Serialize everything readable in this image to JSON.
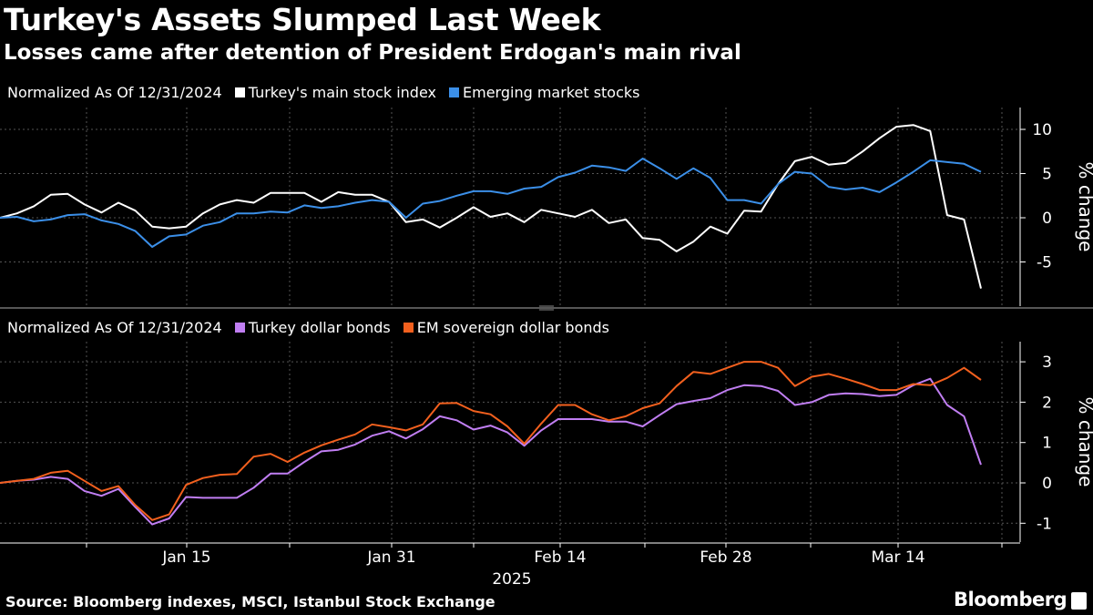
{
  "title": "Turkey's Assets Slumped Last Week",
  "subtitle": "Losses came after detention of President Erdogan's main rival",
  "source": "Source: Bloomberg indexes, MSCI, Istanbul Stock Exchange",
  "brand": "Bloomberg",
  "colors": {
    "white": "#ffffff",
    "blue": "#3b8fe8",
    "purple": "#c07ef2",
    "orange": "#f2601e",
    "grid": "#555555"
  },
  "x_axis": {
    "ticks": [
      "Jan 15",
      "Jan 31",
      "Feb 14",
      "Feb 28",
      "Mar 14"
    ],
    "year_label": "2025"
  },
  "chart_data": [
    {
      "type": "line",
      "legend_note": "Normalized As Of 12/31/2024",
      "ylabel": "% change",
      "ylim": [
        -10,
        12
      ],
      "yticks": [
        "10",
        "5",
        "0",
        "-5"
      ],
      "ytick_values": [
        10,
        5,
        0,
        -5
      ],
      "x": [
        "Dec 31",
        "Jan 2",
        "Jan 3",
        "Jan 6",
        "Jan 7",
        "Jan 8",
        "Jan 9",
        "Jan 10",
        "Jan 13",
        "Jan 14",
        "Jan 15",
        "Jan 16",
        "Jan 17",
        "Jan 20",
        "Jan 21",
        "Jan 22",
        "Jan 23",
        "Jan 24",
        "Jan 27",
        "Jan 28",
        "Jan 29",
        "Jan 30",
        "Jan 31",
        "Feb 3",
        "Feb 4",
        "Feb 5",
        "Feb 6",
        "Feb 7",
        "Feb 10",
        "Feb 11",
        "Feb 12",
        "Feb 13",
        "Feb 14",
        "Feb 17",
        "Feb 18",
        "Feb 19",
        "Feb 20",
        "Feb 21",
        "Feb 24",
        "Feb 25",
        "Feb 26",
        "Feb 27",
        "Feb 28",
        "Mar 3",
        "Mar 4",
        "Mar 5",
        "Mar 6",
        "Mar 7",
        "Mar 10",
        "Mar 11",
        "Mar 12",
        "Mar 13",
        "Mar 14",
        "Mar 17",
        "Mar 18",
        "Mar 19",
        "Mar 20",
        "Mar 21",
        "Mar 24"
      ],
      "series": [
        {
          "name": "Turkey's main stock index",
          "color": "#ffffff",
          "values": [
            0,
            0.5,
            1.3,
            2.6,
            2.7,
            1.5,
            0.6,
            1.7,
            0.8,
            -1.0,
            -1.2,
            -1.0,
            0.5,
            1.5,
            2.0,
            1.7,
            2.8,
            2.8,
            2.8,
            1.8,
            2.9,
            2.6,
            2.6,
            1.8,
            -0.5,
            -0.2,
            -1.1,
            0,
            1.2,
            0.1,
            0.5,
            -0.5,
            0.9,
            0.5,
            0.1,
            0.9,
            -0.6,
            -0.2,
            -2.3,
            -2.5,
            -3.8,
            -2.7,
            -1.0,
            -1.8,
            0.8,
            0.7,
            3.8,
            6.4,
            6.9,
            6.0,
            6.2,
            7.5,
            9.0,
            10.3,
            10.5,
            9.8,
            0.3,
            -0.2,
            -8.0
          ]
        },
        {
          "name": "Emerging market stocks",
          "color": "#3b8fe8",
          "values": [
            0,
            0.1,
            -0.4,
            -0.2,
            0.3,
            0.4,
            -0.3,
            -0.7,
            -1.5,
            -3.3,
            -2.1,
            -1.9,
            -0.9,
            -0.5,
            0.5,
            0.5,
            0.7,
            0.6,
            1.4,
            1.1,
            1.3,
            1.7,
            2.0,
            1.8,
            0,
            1.6,
            1.9,
            2.5,
            3.0,
            3.0,
            2.7,
            3.3,
            3.5,
            4.6,
            5.1,
            5.9,
            5.7,
            5.3,
            6.7,
            5.6,
            4.4,
            5.6,
            4.5,
            2.0,
            2.0,
            1.6,
            3.8,
            5.2,
            5.0,
            3.5,
            3.2,
            3.4,
            2.9,
            4.0,
            5.2,
            6.5,
            6.3,
            6.1,
            5.2
          ]
        }
      ]
    },
    {
      "type": "line",
      "legend_note": "Normalized As Of 12/31/2024",
      "ylabel": "% change",
      "ylim": [
        -1.4,
        3.6
      ],
      "yticks": [
        "3",
        "2",
        "1",
        "0",
        "-1"
      ],
      "ytick_values": [
        3,
        2,
        1,
        0,
        -1
      ],
      "x": [
        "Dec 31",
        "Jan 2",
        "Jan 3",
        "Jan 6",
        "Jan 7",
        "Jan 8",
        "Jan 9",
        "Jan 10",
        "Jan 13",
        "Jan 14",
        "Jan 15",
        "Jan 16",
        "Jan 17",
        "Jan 20",
        "Jan 21",
        "Jan 22",
        "Jan 23",
        "Jan 24",
        "Jan 27",
        "Jan 28",
        "Jan 29",
        "Jan 30",
        "Jan 31",
        "Feb 3",
        "Feb 4",
        "Feb 5",
        "Feb 6",
        "Feb 7",
        "Feb 10",
        "Feb 11",
        "Feb 12",
        "Feb 13",
        "Feb 14",
        "Feb 17",
        "Feb 18",
        "Feb 19",
        "Feb 20",
        "Feb 21",
        "Feb 24",
        "Feb 25",
        "Feb 26",
        "Feb 27",
        "Feb 28",
        "Mar 3",
        "Mar 4",
        "Mar 5",
        "Mar 6",
        "Mar 7",
        "Mar 10",
        "Mar 11",
        "Mar 12",
        "Mar 13",
        "Mar 14",
        "Mar 17",
        "Mar 18",
        "Mar 19",
        "Mar 20",
        "Mar 21",
        "Mar 24"
      ],
      "series": [
        {
          "name": "Turkey dollar bonds",
          "color": "#c07ef2",
          "values": [
            0,
            0.05,
            0.08,
            0.15,
            0.1,
            -0.2,
            -0.32,
            -0.15,
            -0.6,
            -1.03,
            -0.88,
            -0.35,
            -0.37,
            -0.37,
            -0.37,
            -0.12,
            0.23,
            0.23,
            0.52,
            0.78,
            0.82,
            0.95,
            1.17,
            1.28,
            1.1,
            1.33,
            1.65,
            1.55,
            1.32,
            1.42,
            1.25,
            0.92,
            1.3,
            1.58,
            1.58,
            1.58,
            1.52,
            1.52,
            1.4,
            1.68,
            1.95,
            2.03,
            2.1,
            2.3,
            2.42,
            2.4,
            2.28,
            1.93,
            2.0,
            2.18,
            2.22,
            2.2,
            2.15,
            2.18,
            2.42,
            2.58,
            1.93,
            1.65,
            0.45
          ]
        },
        {
          "name": "EM sovereign dollar bonds",
          "color": "#f2601e",
          "values": [
            0,
            0.05,
            0.1,
            0.25,
            0.3,
            0.05,
            -0.2,
            -0.08,
            -0.55,
            -0.92,
            -0.78,
            -0.05,
            0.12,
            0.2,
            0.22,
            0.65,
            0.72,
            0.52,
            0.75,
            0.93,
            1.07,
            1.2,
            1.45,
            1.38,
            1.3,
            1.45,
            1.97,
            1.98,
            1.78,
            1.7,
            1.4,
            0.97,
            1.47,
            1.93,
            1.93,
            1.7,
            1.55,
            1.65,
            1.85,
            1.97,
            2.4,
            2.75,
            2.7,
            2.85,
            3.0,
            3.0,
            2.85,
            2.4,
            2.63,
            2.7,
            2.58,
            2.45,
            2.3,
            2.3,
            2.45,
            2.42,
            2.6,
            2.85,
            2.55
          ]
        }
      ]
    }
  ]
}
